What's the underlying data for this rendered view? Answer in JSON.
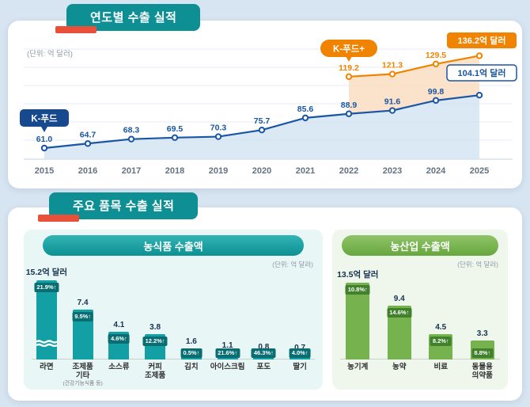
{
  "sections": {
    "annual": {
      "banner": "연도별 수출 실적"
    },
    "items": {
      "banner": "주요 품목 수출 실적"
    }
  },
  "colors": {
    "kfood_blue": "#1a56a3",
    "kfoodplus_orange": "#f08300",
    "banner_teal": "#0d8f94",
    "accent_red": "#e8503a",
    "agrifood_teal": "#13a0a4",
    "agriindustry_green": "#76b34f"
  },
  "chart_data": [
    {
      "type": "line",
      "title": "연도별 수출 실적",
      "unit": "(단위: 억 달러)",
      "x": [
        2015,
        2016,
        2017,
        2018,
        2019,
        2020,
        2021,
        2022,
        2023,
        2024,
        2025
      ],
      "series": [
        {
          "name": "K-푸드",
          "color": "#1a56a3",
          "start": 0,
          "values": [
            61.0,
            64.7,
            68.3,
            69.5,
            70.3,
            75.7,
            85.6,
            88.9,
            91.6,
            99.8,
            104.1
          ],
          "end_label": "104.1억 달러"
        },
        {
          "name": "K-푸드+",
          "color": "#f08300",
          "start": 7,
          "values": [
            119.2,
            121.3,
            129.5,
            136.2
          ],
          "end_label": "136.2억 달러"
        }
      ]
    },
    {
      "type": "bar",
      "title": "농식품 수출액",
      "unit": "(단위: 억 달러)",
      "bar_color": "#13a0a4",
      "badge_color": "#0a6d72",
      "categories": [
        "라면",
        "조제품 기타",
        "소스류",
        "커피 조제품",
        "김치",
        "아이스크림",
        "포도",
        "딸기"
      ],
      "category_lines": [
        [
          "라면"
        ],
        [
          "조제품",
          "기타"
        ],
        [
          "소스류"
        ],
        [
          "커피",
          "조제품"
        ],
        [
          "김치"
        ],
        [
          "아이스크림"
        ],
        [
          "포도"
        ],
        [
          "딸기"
        ]
      ],
      "sub_notes": [
        "",
        "(건강기능식품 등)",
        "",
        "",
        "",
        "",
        "",
        ""
      ],
      "values": [
        15.2,
        7.4,
        4.1,
        3.8,
        1.6,
        1.1,
        0.8,
        0.7
      ],
      "value_labels": [
        "15.2억 달러",
        "7.4",
        "4.1",
        "3.8",
        "1.6",
        "1.1",
        "0.8",
        "0.7"
      ],
      "pct_labels": [
        "21.9%↑",
        "9.5%↑",
        "4.6%↑",
        "12.2%↑",
        "0.5%↑",
        "21.6%↑",
        "46.3%↑",
        "4.0%↑"
      ],
      "broken": [
        true,
        false,
        false,
        false,
        false,
        false,
        false,
        false
      ]
    },
    {
      "type": "bar",
      "title": "농산업 수출액",
      "unit": "(단위: 억 달러)",
      "bar_color": "#76b34f",
      "badge_color": "#41802c",
      "categories": [
        "농기계",
        "농약",
        "비료",
        "동물용 의약품"
      ],
      "category_lines": [
        [
          "농기계"
        ],
        [
          "농약"
        ],
        [
          "비료"
        ],
        [
          "동물용",
          "의약품"
        ]
      ],
      "sub_notes": [
        "",
        "",
        "",
        ""
      ],
      "values": [
        13.5,
        9.4,
        4.5,
        3.3
      ],
      "value_labels": [
        "13.5억 달러",
        "9.4",
        "4.5",
        "3.3"
      ],
      "pct_labels": [
        "10.8%↑",
        "14.6%↑",
        "8.2%↑",
        "8.8%↑"
      ],
      "broken": [
        false,
        false,
        false,
        false
      ]
    }
  ]
}
